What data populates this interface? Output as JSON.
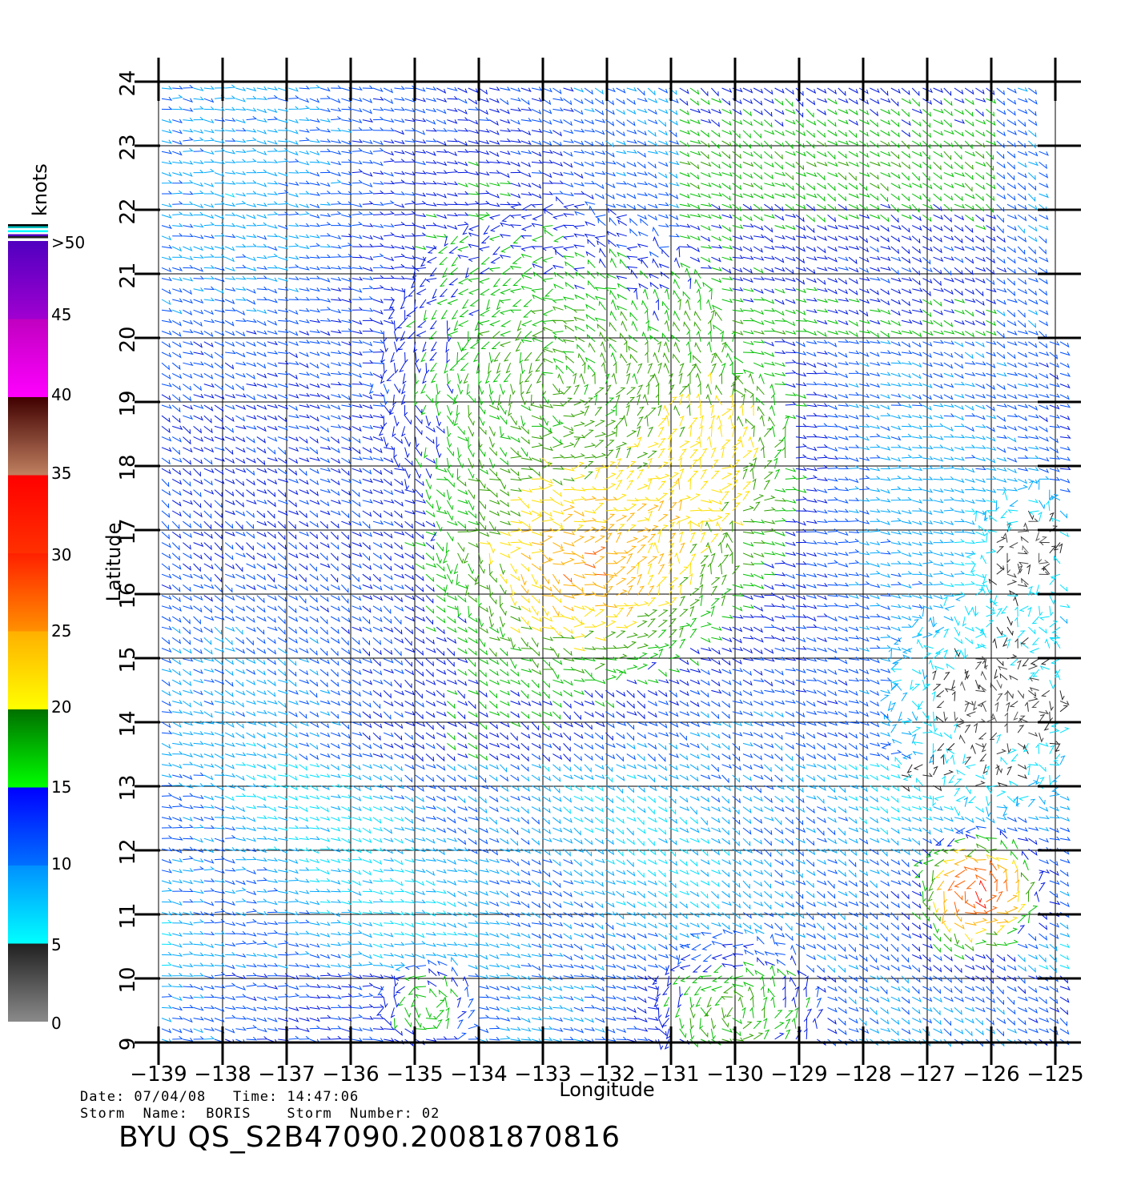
{
  "chart_data": {
    "type": "wind-vector-map",
    "xlabel": "Longitude",
    "ylabel": "Latitude",
    "xlim": [
      -139,
      -124.6
    ],
    "ylim": [
      9,
      24
    ],
    "x_ticks": [
      "−139",
      "−138",
      "−137",
      "−136",
      "−135",
      "−134",
      "−133",
      "−132",
      "−131",
      "−130",
      "−129",
      "−128",
      "−127",
      "−126",
      "−125"
    ],
    "y_ticks": [
      "9",
      "10",
      "11",
      "12",
      "13",
      "14",
      "15",
      "16",
      "17",
      "18",
      "19",
      "20",
      "21",
      "22",
      "23",
      "24"
    ],
    "grid": true,
    "colorbar": {
      "unit": "knots",
      "placement": "left",
      "labels": [
        "0",
        "5",
        "10",
        "15",
        "20",
        "25",
        "30",
        "35",
        "40",
        "45",
        ">50"
      ],
      "bins": [
        {
          "min": 0,
          "max": 5,
          "color_top": "#202020",
          "color_bottom": "#8a8a8a"
        },
        {
          "min": 5,
          "max": 10,
          "color_top": "#0090ff",
          "color_bottom": "#00ffff"
        },
        {
          "min": 10,
          "max": 15,
          "color_top": "#0000ff",
          "color_bottom": "#0070ff"
        },
        {
          "min": 15,
          "max": 20,
          "color_top": "#007000",
          "color_bottom": "#00ff00"
        },
        {
          "min": 20,
          "max": 25,
          "color_top": "#ffb000",
          "color_bottom": "#ffff00"
        },
        {
          "min": 25,
          "max": 30,
          "color_top": "#ff2000",
          "color_bottom": "#ff9000"
        },
        {
          "min": 30,
          "max": 35,
          "color_top": "#ff0000",
          "color_bottom": "#ff3000"
        },
        {
          "min": 35,
          "max": 40,
          "color_top": "#400000",
          "color_bottom": "#c08060"
        },
        {
          "min": 40,
          "max": 45,
          "color_top": "#c000c0",
          "color_bottom": "#ff00ff"
        },
        {
          "min": 45,
          "max": 50,
          "color_top": "#5000c0",
          "color_bottom": "#a000d0"
        }
      ]
    },
    "wind_features": [
      {
        "lat": 17.0,
        "lon": -132.3,
        "speed_kt": 28,
        "spread_deg": 2.2
      },
      {
        "lat": 18.4,
        "lon": -130.6,
        "speed_kt": 24,
        "spread_deg": 1.3
      },
      {
        "lat": 19.3,
        "lon": -132.8,
        "speed_kt": 18,
        "spread_deg": 2.6
      },
      {
        "lat": 11.4,
        "lon": -126.2,
        "speed_kt": 32,
        "spread_deg": 0.9
      },
      {
        "lat": 9.5,
        "lon": -130.0,
        "speed_kt": 18,
        "spread_deg": 1.2
      },
      {
        "lat": 9.6,
        "lon": -134.8,
        "speed_kt": 17,
        "spread_deg": 0.7
      }
    ],
    "calm_features": [
      {
        "lat": 14.3,
        "lon": -126.0,
        "spread_deg": 1.6
      },
      {
        "lat": 16.7,
        "lon": -125.4,
        "spread_deg": 0.9
      }
    ]
  },
  "info": {
    "date_line": "Date: 07/04/08   Time: 14:47:06",
    "storm_line": "Storm  Name:  BORIS    Storm  Number: 02",
    "title": "BYU  QS_S2B47090.20081870816"
  }
}
